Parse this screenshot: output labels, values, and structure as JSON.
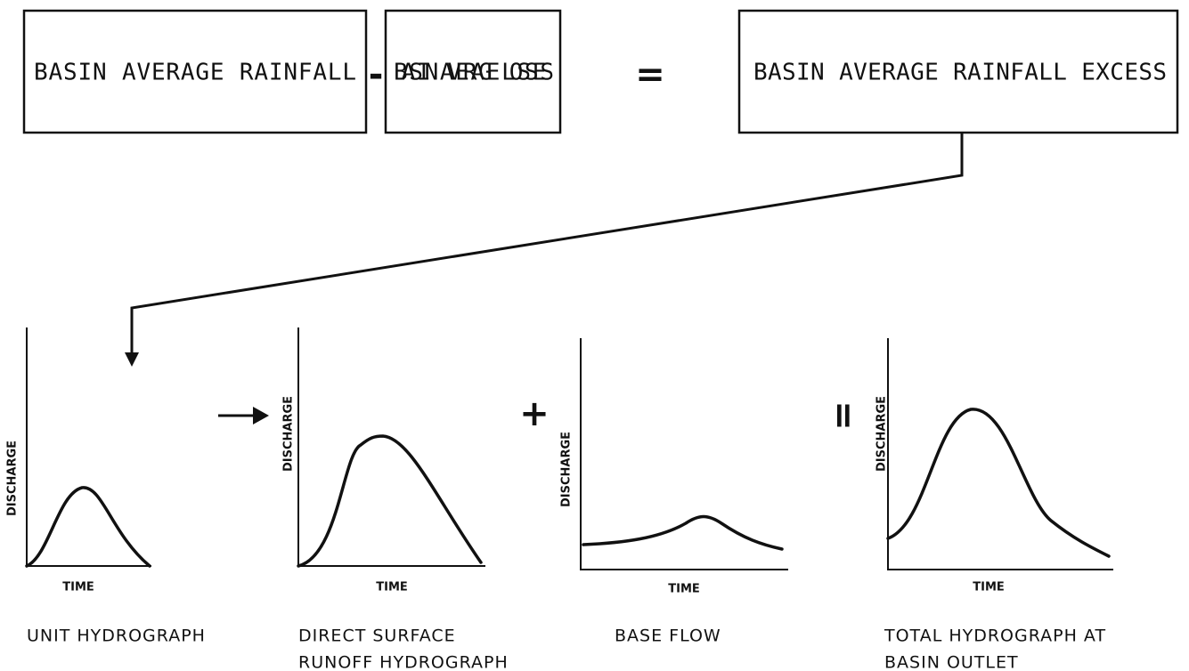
{
  "boxes": [
    {
      "label": "BASIN AVERAGE RAINFALL"
    },
    {
      "label": "BASIN AVERAGE LOSSES"
    },
    {
      "label": "BASIN AVERAGE RAINFALL EXCESS"
    }
  ],
  "operators": [
    "-",
    "=",
    "+",
    "="
  ],
  "graphs": [
    {
      "y_label": "DISCHARGE",
      "x_label": "TIME",
      "caption": [
        "UNIT HYDROGRAPH"
      ]
    },
    {
      "y_label": "DISCHARGE",
      "x_label": "TIME",
      "caption": [
        "DIRECT SURFACE",
        "RUNOFF HYDROGRAPH"
      ]
    },
    {
      "y_label": "DISCHARGE",
      "x_label": "TIME",
      "caption": [
        "BASE FLOW"
      ]
    },
    {
      "y_label": "DISCHARGE",
      "x_label": "TIME",
      "caption": [
        "TOTAL HYDROGRAPH AT",
        "BASIN OUTLET"
      ]
    }
  ]
}
